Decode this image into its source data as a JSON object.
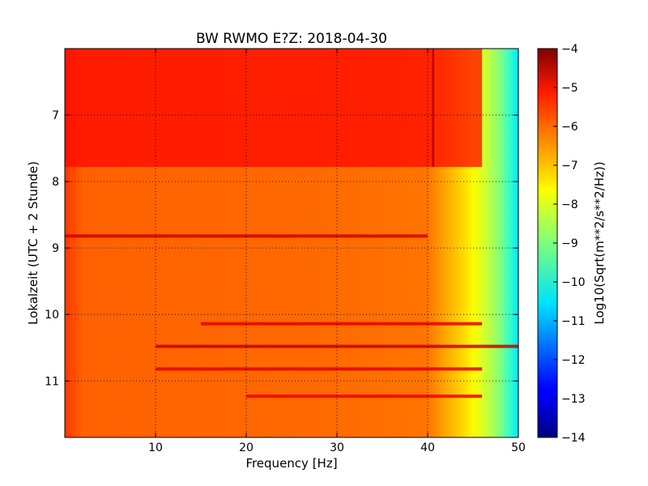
{
  "chart_data": {
    "type": "heatmap",
    "title": "BW RWMO E?Z: 2018-04-30",
    "xlabel": "Frequency [Hz]",
    "ylabel": "Lokalzeit (UTC + 2 Stunde)",
    "xlim": [
      0,
      50
    ],
    "ylim": [
      11.85,
      6.0
    ],
    "x_ticks": [
      10,
      20,
      30,
      40,
      50
    ],
    "x_tick_labels": [
      "10",
      "20",
      "30",
      "40",
      "50"
    ],
    "y_ticks": [
      7,
      8,
      9,
      10,
      11
    ],
    "y_tick_labels": [
      "7",
      "8",
      "9",
      "10",
      "11"
    ],
    "grid": true,
    "grid_style": "dotted",
    "colormap": "jet",
    "colorbar": {
      "label": "Log10(Sqrt(m**2/s**2/Hz))",
      "range": [
        -14,
        -4
      ],
      "ticks": [
        -4,
        -5,
        -6,
        -7,
        -8,
        -9,
        -10,
        -11,
        -12,
        -13,
        -14
      ],
      "tick_labels": [
        "−4",
        "−5",
        "−6",
        "−7",
        "−8",
        "−9",
        "−10",
        "−11",
        "−12",
        "−13",
        "−14"
      ]
    },
    "spectrum_profile": {
      "freq_hz": [
        0,
        2,
        30,
        40,
        42,
        44,
        45,
        46,
        47,
        48,
        49,
        50
      ],
      "baseline_value": [
        -5.8,
        -6.2,
        -6.3,
        -6.4,
        -6.9,
        -7.4,
        -7.7,
        -8.1,
        -8.5,
        -9.0,
        -9.7,
        -10.5
      ]
    },
    "annotations": [
      {
        "type": "elevated_noise_block",
        "time_start": 6.0,
        "time_end": 7.78,
        "freq_start": 0,
        "freq_end": 46,
        "value": -5.3
      },
      {
        "type": "resonance_line",
        "freq_hz": 40.6,
        "time_start": 6.0,
        "time_end": 7.78,
        "value": -4.6
      },
      {
        "type": "strong_band",
        "time": 8.82,
        "freq_start": 0,
        "freq_end": 40,
        "value": -4.8
      },
      {
        "type": "strong_band",
        "time": 10.14,
        "freq_start": 15,
        "freq_end": 46,
        "value": -5.0
      },
      {
        "type": "strong_band",
        "time": 10.48,
        "freq_start": 10,
        "freq_end": 50,
        "value": -4.7
      },
      {
        "type": "strong_band",
        "time": 10.82,
        "freq_start": 10,
        "freq_end": 46,
        "value": -5.0
      },
      {
        "type": "strong_band",
        "time": 11.23,
        "freq_start": 20,
        "freq_end": 46,
        "value": -5.1
      }
    ]
  }
}
